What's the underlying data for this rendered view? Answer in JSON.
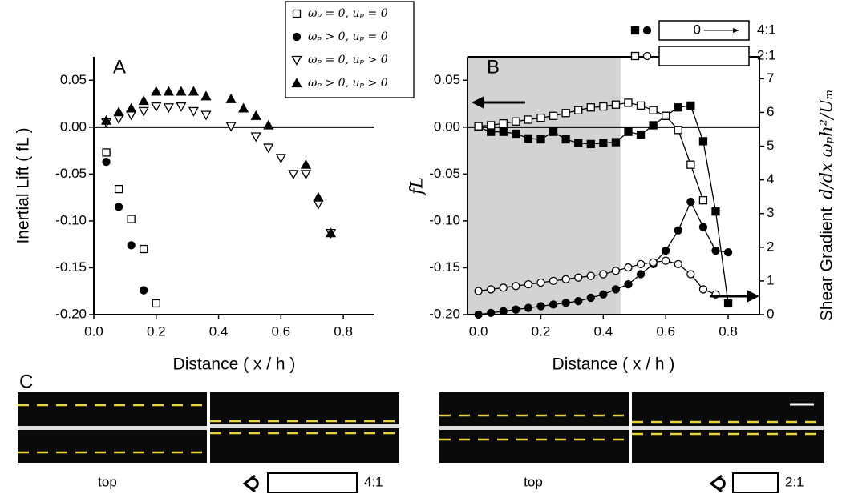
{
  "chart_data": [
    {
      "type": "scatter",
      "panel_label": "A",
      "xlabel": "Distance ( x / h )",
      "ylabel": "Inertial Lift ( fL )",
      "xlim": [
        0,
        0.9
      ],
      "ylim": [
        -0.2,
        0.075
      ],
      "xticks": [
        {
          "value": 0,
          "label": "0.0"
        },
        0.2,
        0.4,
        0.6,
        0.8
      ],
      "yticks": [
        {
          "value": -0.2,
          "label": "-0.20"
        },
        -0.15,
        {
          "value": -0.1,
          "label": "-0.10"
        },
        -0.05,
        {
          "value": 0,
          "label": "0.00"
        },
        0.05
      ],
      "zero_line": true,
      "frame": "axes",
      "series": [
        {
          "name": "ωₚ = 0, uₚ = 0",
          "marker": "open-square",
          "color": "#000000",
          "x": [
            0.04,
            0.08,
            0.12,
            0.16,
            0.2
          ],
          "values": [
            -0.027,
            -0.066,
            -0.098,
            -0.13,
            -0.188
          ]
        },
        {
          "name": "ωₚ > 0, uₚ = 0",
          "marker": "circle",
          "color": "#000000",
          "x": [
            0.04,
            0.08,
            0.12,
            0.16
          ],
          "values": [
            -0.037,
            -0.085,
            -0.126,
            -0.174
          ]
        },
        {
          "name": "ωₚ = 0, uₚ > 0",
          "marker": "open-triangle-down",
          "color": "#000000",
          "x": [
            0.04,
            0.08,
            0.12,
            0.16,
            0.2,
            0.24,
            0.28,
            0.32,
            0.36,
            0.44,
            0.52,
            0.56,
            0.6,
            0.64,
            0.68,
            0.72,
            0.76
          ],
          "values": [
            0.005,
            0.009,
            0.013,
            0.017,
            0.022,
            0.021,
            0.022,
            0.017,
            0.013,
            0.001,
            -0.01,
            -0.022,
            -0.033,
            -0.05,
            -0.05,
            -0.082,
            -0.113
          ]
        },
        {
          "name": "ωₚ > 0, uₚ > 0",
          "marker": "triangle-up",
          "color": "#000000",
          "x": [
            0.04,
            0.08,
            0.12,
            0.16,
            0.2,
            0.24,
            0.28,
            0.32,
            0.36,
            0.44,
            0.48,
            0.52,
            0.56,
            0.68,
            0.72,
            0.76
          ],
          "values": [
            0.007,
            0.016,
            0.02,
            0.028,
            0.038,
            0.038,
            0.038,
            0.038,
            0.033,
            0.03,
            0.02,
            0.012,
            0.002,
            -0.04,
            -0.075,
            -0.113
          ]
        }
      ]
    },
    {
      "type": "scatter",
      "panel_label": "B",
      "xlabel": "Distance ( x / h )",
      "ylabel": "fL",
      "y2label": "Shear Gradient",
      "y2label_math": "d/dx ωₚh²/Uₘ",
      "xlim": [
        -0.035,
        0.9
      ],
      "ylim": [
        -0.2,
        0.075
      ],
      "y2lim": [
        0,
        7.65
      ],
      "xticks": [
        {
          "value": 0,
          "label": "0.0"
        },
        0.2,
        0.4,
        0.6,
        0.8
      ],
      "yticks": [
        {
          "value": -0.2,
          "label": "-0.20"
        },
        -0.15,
        {
          "value": -0.1,
          "label": "-0.10"
        },
        -0.05,
        {
          "value": 0,
          "label": "0.00"
        },
        0.05
      ],
      "y2ticks": [
        0,
        1,
        2,
        3,
        4,
        5,
        6,
        7
      ],
      "shade_x": [
        -0.035,
        0.455
      ],
      "zero_line": true,
      "frame": "box",
      "lines": true,
      "series": [
        {
          "marker": "square",
          "color": "#000000",
          "x": [
            0,
            0.04,
            0.08,
            0.12,
            0.16,
            0.2,
            0.24,
            0.28,
            0.32,
            0.36,
            0.4,
            0.44,
            0.48,
            0.52,
            0.56,
            0.6,
            0.64,
            0.68,
            0.72,
            0.76,
            0.8
          ],
          "values": [
            0,
            -0.005,
            -0.005,
            -0.007,
            -0.012,
            -0.013,
            -0.005,
            -0.013,
            -0.017,
            -0.018,
            -0.017,
            -0.016,
            -0.005,
            -0.008,
            0.002,
            0.012,
            0.021,
            0.023,
            -0.015,
            -0.09,
            -0.188
          ]
        },
        {
          "marker": "open-square",
          "color": "#000000",
          "x": [
            0,
            0.04,
            0.08,
            0.12,
            0.16,
            0.2,
            0.24,
            0.28,
            0.32,
            0.36,
            0.4,
            0.44,
            0.48,
            0.52,
            0.56,
            0.6,
            0.64,
            0.68,
            0.72
          ],
          "values": [
            0.001,
            0.002,
            0.004,
            0.006,
            0.008,
            0.01,
            0.012,
            0.015,
            0.018,
            0.021,
            0.022,
            0.024,
            0.026,
            0.023,
            0.018,
            0.012,
            -0.003,
            -0.04,
            -0.078
          ]
        },
        {
          "marker": "circle",
          "color": "#000000",
          "axis": "y2",
          "x": [
            0,
            0.04,
            0.08,
            0.12,
            0.16,
            0.2,
            0.24,
            0.28,
            0.32,
            0.36,
            0.4,
            0.44,
            0.48,
            0.52,
            0.56,
            0.6,
            0.64,
            0.68,
            0.72,
            0.76,
            0.8
          ],
          "values": [
            0,
            0.05,
            0.1,
            0.15,
            0.2,
            0.25,
            0.3,
            0.35,
            0.4,
            0.5,
            0.6,
            0.75,
            0.9,
            1.2,
            1.5,
            1.9,
            2.5,
            3.35,
            2.6,
            1.9,
            1.85
          ]
        },
        {
          "marker": "open-circle",
          "color": "#000000",
          "axis": "y2",
          "x": [
            0,
            0.04,
            0.08,
            0.12,
            0.16,
            0.2,
            0.24,
            0.28,
            0.32,
            0.36,
            0.4,
            0.44,
            0.48,
            0.52,
            0.56,
            0.6,
            0.64,
            0.68,
            0.72,
            0.76
          ],
          "values": [
            0.7,
            0.75,
            0.8,
            0.85,
            0.9,
            0.95,
            1.0,
            1.05,
            1.1,
            1.15,
            1.2,
            1.3,
            1.4,
            1.5,
            1.55,
            1.6,
            1.5,
            1.2,
            0.75,
            0.6
          ]
        }
      ],
      "legend": [
        {
          "label": "4:1",
          "series": [
            0,
            2
          ],
          "box_text": "0"
        },
        {
          "label": "2:1",
          "series": [
            1,
            3
          ]
        }
      ]
    }
  ],
  "panel_c": {
    "label": "C",
    "captions": [
      "top",
      "4:1",
      "top",
      "2:1"
    ]
  }
}
